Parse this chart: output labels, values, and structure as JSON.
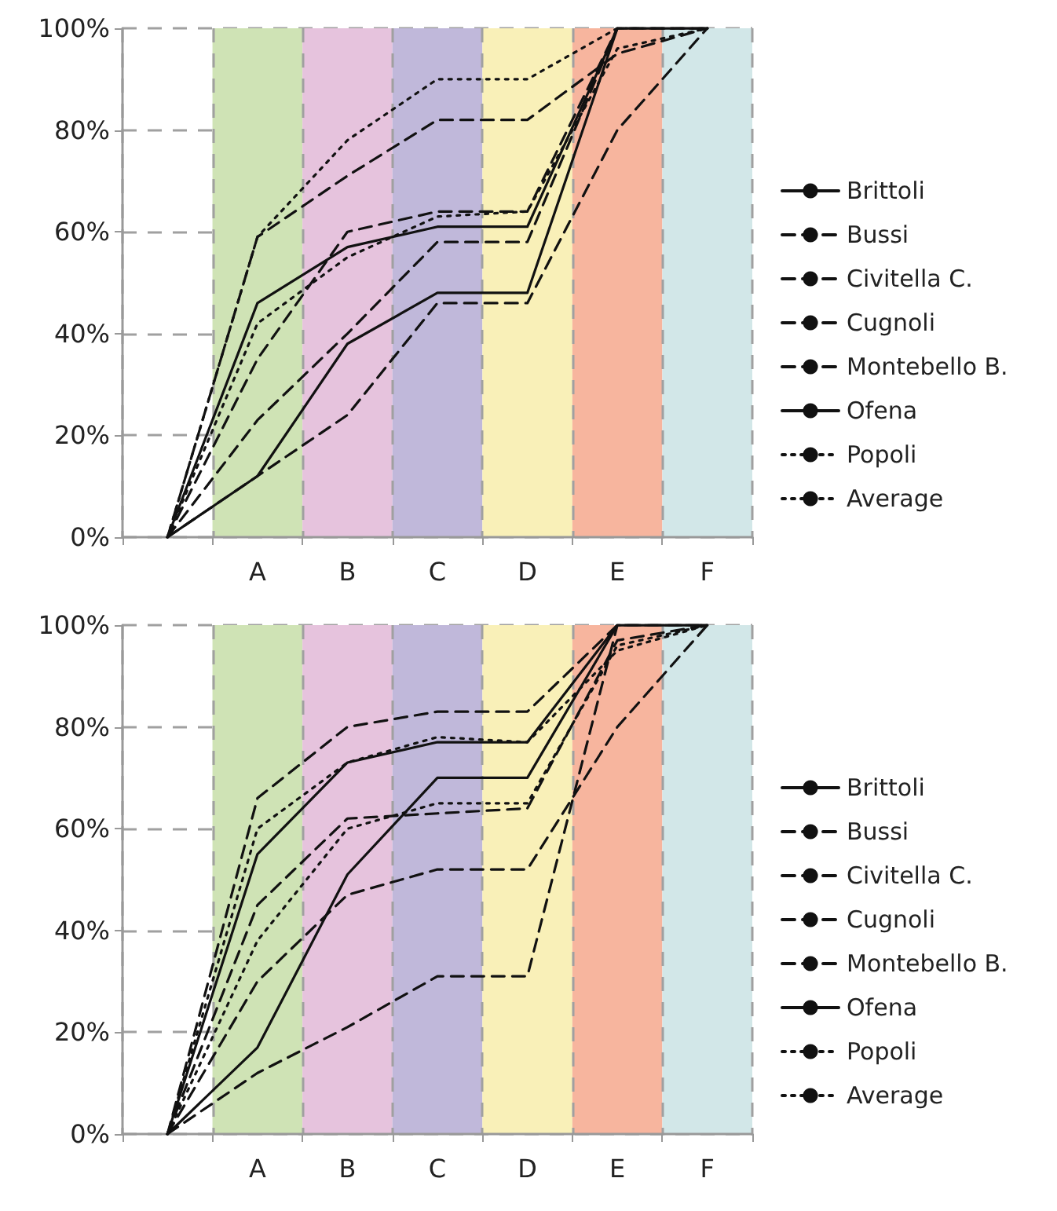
{
  "chart_data": [
    {
      "type": "line",
      "categories": [
        null,
        "A",
        "B",
        "C",
        "D",
        "E",
        "F"
      ],
      "ylim": [
        0,
        100
      ],
      "yticks": [
        {
          "value": 0,
          "label": "0%"
        },
        {
          "value": 20,
          "label": "20%"
        },
        {
          "value": 40,
          "label": "40%"
        },
        {
          "value": 60,
          "label": "60%"
        },
        {
          "value": 80,
          "label": "80%"
        },
        {
          "value": 100,
          "label": "100%"
        }
      ],
      "grid": true,
      "legend": "right",
      "marker": "none",
      "bands": [
        {
          "axis": "x",
          "from": "A",
          "to": "A",
          "color": "#cfe3b5"
        },
        {
          "axis": "x",
          "from": "B",
          "to": "B",
          "color": "#e6c3dd"
        },
        {
          "axis": "x",
          "from": "C",
          "to": "C",
          "color": "#c0b8da"
        },
        {
          "axis": "x",
          "from": "D",
          "to": "D",
          "color": "#f9f0b8"
        },
        {
          "axis": "x",
          "from": "E",
          "to": "E",
          "color": "#f7b59e"
        },
        {
          "axis": "x",
          "from": "F",
          "to": "F",
          "color": "#d2e7e8"
        }
      ],
      "series": [
        {
          "name": "Brittoli",
          "color": "#111111",
          "line_style": "solid",
          "values": [
            0,
            46,
            57,
            61,
            61,
            100,
            100
          ]
        },
        {
          "name": "Bussi",
          "color": "#111111",
          "line_style": "dashed",
          "values": [
            0,
            35,
            60,
            64,
            64,
            100,
            100
          ]
        },
        {
          "name": "Civitella C.",
          "color": "#111111",
          "line_style": "dashed",
          "values": [
            0,
            59,
            71,
            82,
            82,
            95,
            100
          ]
        },
        {
          "name": "Cugnoli",
          "color": "#111111",
          "line_style": "dashed",
          "values": [
            0,
            23,
            40,
            58,
            58,
            100,
            100
          ]
        },
        {
          "name": "Montebello B.",
          "color": "#111111",
          "line_style": "dashed",
          "values": [
            0,
            12,
            24,
            46,
            46,
            80,
            100
          ]
        },
        {
          "name": "Ofena",
          "color": "#111111",
          "line_style": "solid",
          "values": [
            0,
            12,
            38,
            48,
            48,
            100,
            100
          ]
        },
        {
          "name": "Popoli",
          "color": "#111111",
          "line_style": "dotted",
          "values": [
            0,
            59,
            78,
            90,
            90,
            100,
            100
          ]
        },
        {
          "name": "Average",
          "color": "#111111",
          "line_style": "dotted",
          "values": [
            0,
            42,
            55,
            63,
            64,
            96,
            100
          ]
        }
      ]
    },
    {
      "type": "line",
      "categories": [
        null,
        "A",
        "B",
        "C",
        "D",
        "E",
        "F"
      ],
      "ylim": [
        0,
        100
      ],
      "yticks": [
        {
          "value": 0,
          "label": "0%"
        },
        {
          "value": 20,
          "label": "20%"
        },
        {
          "value": 40,
          "label": "40%"
        },
        {
          "value": 60,
          "label": "60%"
        },
        {
          "value": 80,
          "label": "80%"
        },
        {
          "value": 100,
          "label": "100%"
        }
      ],
      "grid": true,
      "legend": "right",
      "marker": "none",
      "bands": [
        {
          "axis": "x",
          "from": "A",
          "to": "A",
          "color": "#cfe3b5"
        },
        {
          "axis": "x",
          "from": "B",
          "to": "B",
          "color": "#e6c3dd"
        },
        {
          "axis": "x",
          "from": "C",
          "to": "C",
          "color": "#c0b8da"
        },
        {
          "axis": "x",
          "from": "D",
          "to": "D",
          "color": "#f9f0b8"
        },
        {
          "axis": "x",
          "from": "E",
          "to": "E",
          "color": "#f7b59e"
        },
        {
          "axis": "x",
          "from": "F",
          "to": "F",
          "color": "#d2e7e8"
        }
      ],
      "series": [
        {
          "name": "Brittoli",
          "color": "#111111",
          "line_style": "solid",
          "values": [
            0,
            17,
            51,
            70,
            70,
            100,
            100
          ]
        },
        {
          "name": "Bussi",
          "color": "#111111",
          "line_style": "dashed",
          "values": [
            0,
            45,
            62,
            63,
            64,
            97,
            100
          ]
        },
        {
          "name": "Civitella C.",
          "color": "#111111",
          "line_style": "dashed",
          "values": [
            0,
            66,
            80,
            83,
            83,
            100,
            100
          ]
        },
        {
          "name": "Cugnoli",
          "color": "#111111",
          "line_style": "dashed",
          "values": [
            0,
            30,
            47,
            52,
            52,
            80,
            100
          ]
        },
        {
          "name": "Montebello B.",
          "color": "#111111",
          "line_style": "dashed",
          "values": [
            0,
            12,
            21,
            31,
            31,
            100,
            100
          ]
        },
        {
          "name": "Ofena",
          "color": "#111111",
          "line_style": "solid",
          "values": [
            0,
            55,
            73,
            77,
            77,
            100,
            100
          ]
        },
        {
          "name": "Popoli",
          "color": "#111111",
          "line_style": "dotted",
          "values": [
            0,
            60,
            73,
            78,
            77,
            95,
            100
          ]
        },
        {
          "name": "Average",
          "color": "#111111",
          "line_style": "dotted",
          "values": [
            0,
            38,
            60,
            65,
            65,
            96,
            100
          ]
        }
      ]
    }
  ]
}
